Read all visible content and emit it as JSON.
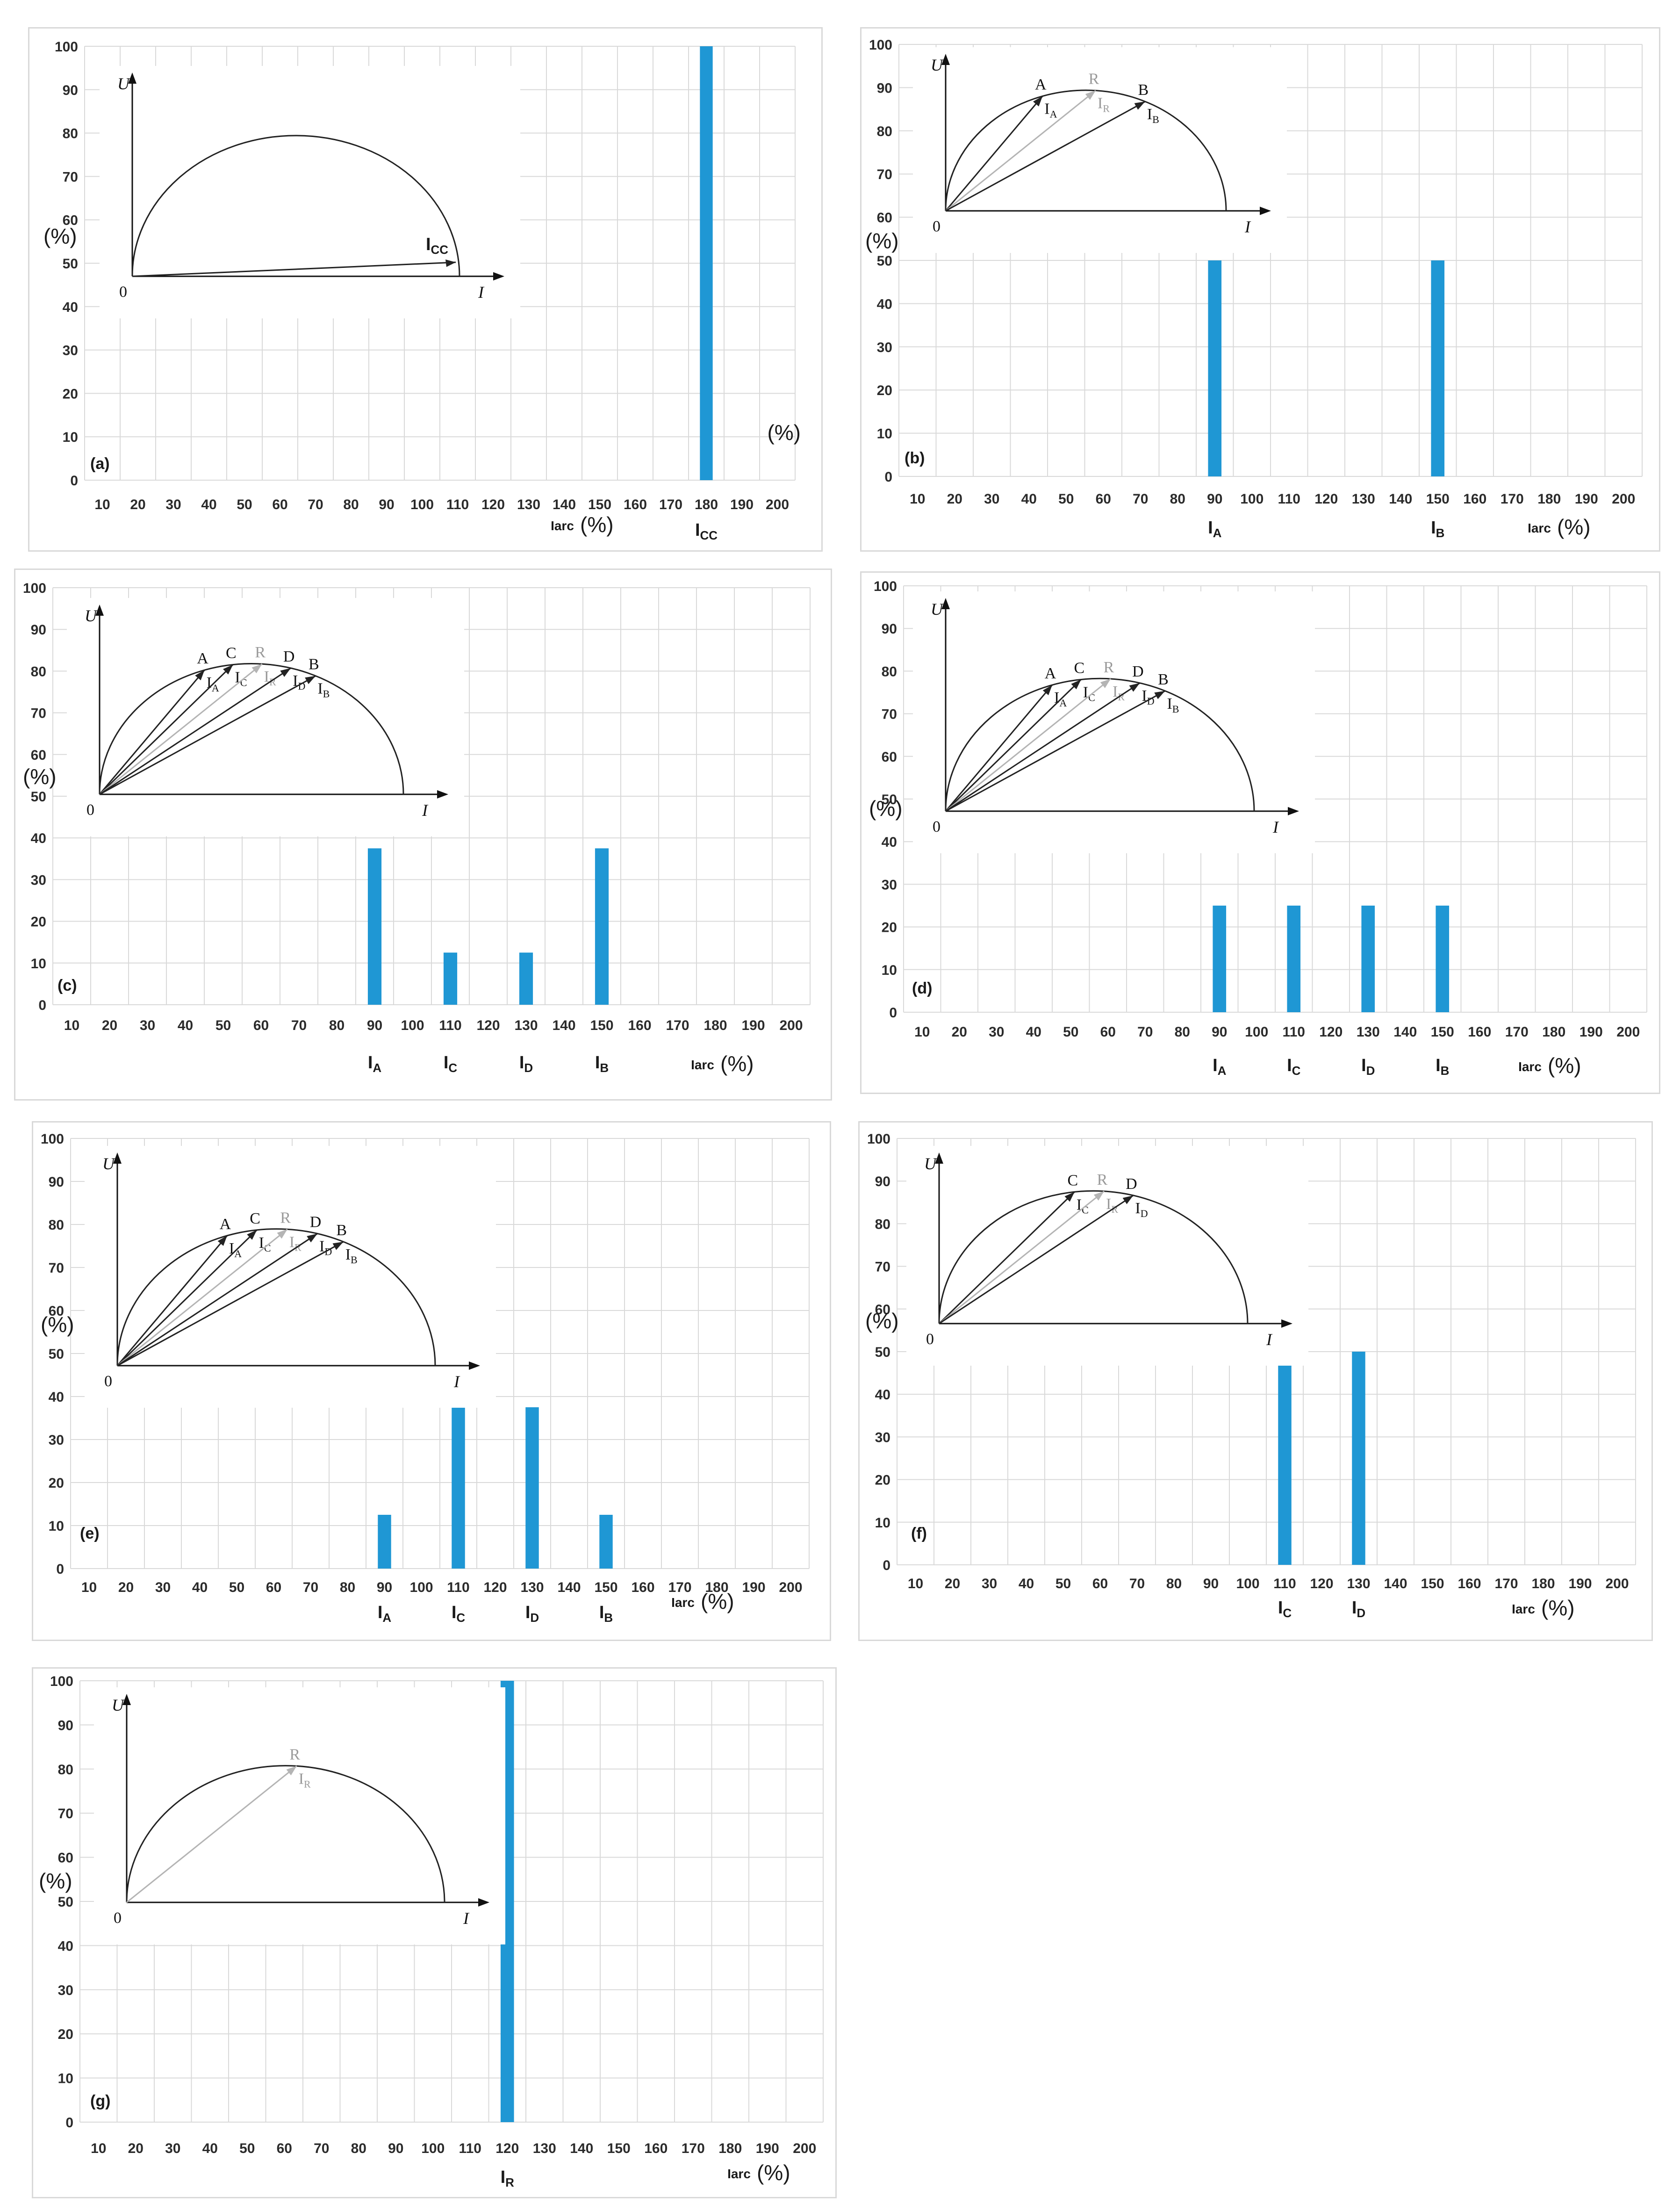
{
  "colors": {
    "bar": "#1f97d4",
    "grid": "#d9d9d9",
    "axis": "#111111",
    "grey_vector": "#b4b4b4"
  },
  "common": {
    "y_unit": "(%)",
    "x_label": "Iarc",
    "x_unit": "(%)",
    "inset_y_label": "U",
    "inset_x_label": "I",
    "inset_origin": "0"
  },
  "chart_data": [
    {
      "type": "bar",
      "panel_label": "(a)",
      "x": [
        10,
        20,
        30,
        40,
        50,
        60,
        70,
        80,
        90,
        100,
        110,
        120,
        130,
        140,
        150,
        160,
        170,
        180,
        190,
        200
      ],
      "y_ticks": [
        0,
        10,
        20,
        30,
        40,
        50,
        60,
        70,
        80,
        90,
        100
      ],
      "ylim": [
        0,
        100
      ],
      "series": [
        {
          "values": [
            {
              "x": 180,
              "y": 100
            }
          ]
        }
      ],
      "category_labels": [
        {
          "x": 180,
          "base": "I",
          "sub": "CC"
        }
      ],
      "inset": {
        "points": [],
        "vectors": [
          {
            "label": "I",
            "sub": "CC"
          }
        ]
      }
    },
    {
      "type": "bar",
      "panel_label": "(b)",
      "x": [
        10,
        20,
        30,
        40,
        50,
        60,
        70,
        80,
        90,
        100,
        110,
        120,
        130,
        140,
        150,
        160,
        170,
        180,
        190,
        200
      ],
      "y_ticks": [
        0,
        10,
        20,
        30,
        40,
        50,
        60,
        70,
        80,
        90,
        100
      ],
      "ylim": [
        0,
        100
      ],
      "series": [
        {
          "values": [
            {
              "x": 90,
              "y": 50
            },
            {
              "x": 150,
              "y": 50
            }
          ]
        }
      ],
      "category_labels": [
        {
          "x": 90,
          "base": "I",
          "sub": "A"
        },
        {
          "x": 150,
          "base": "I",
          "sub": "B"
        }
      ],
      "inset": {
        "points": [
          "A",
          "R",
          "B"
        ],
        "vectors": [
          {
            "label": "I",
            "sub": "A"
          },
          {
            "label": "I",
            "sub": "R"
          },
          {
            "label": "I",
            "sub": "B"
          }
        ]
      }
    },
    {
      "type": "bar",
      "panel_label": "(c)",
      "x": [
        10,
        20,
        30,
        40,
        50,
        60,
        70,
        80,
        90,
        100,
        110,
        120,
        130,
        140,
        150,
        160,
        170,
        180,
        190,
        200
      ],
      "y_ticks": [
        0,
        10,
        20,
        30,
        40,
        50,
        60,
        70,
        80,
        90,
        100
      ],
      "ylim": [
        0,
        100
      ],
      "series": [
        {
          "values": [
            {
              "x": 90,
              "y": 37.5
            },
            {
              "x": 110,
              "y": 12.5
            },
            {
              "x": 130,
              "y": 12.5
            },
            {
              "x": 150,
              "y": 37.5
            }
          ]
        }
      ],
      "category_labels": [
        {
          "x": 90,
          "base": "I",
          "sub": "A"
        },
        {
          "x": 110,
          "base": "I",
          "sub": "C"
        },
        {
          "x": 130,
          "base": "I",
          "sub": "D"
        },
        {
          "x": 150,
          "base": "I",
          "sub": "B"
        }
      ],
      "inset": {
        "points": [
          "A",
          "C",
          "R",
          "D",
          "B"
        ],
        "vectors": [
          {
            "label": "I",
            "sub": "A"
          },
          {
            "label": "I",
            "sub": "C"
          },
          {
            "label": "I",
            "sub": "R"
          },
          {
            "label": "I",
            "sub": "D"
          },
          {
            "label": "I",
            "sub": "B"
          }
        ]
      }
    },
    {
      "type": "bar",
      "panel_label": "(d)",
      "x": [
        10,
        20,
        30,
        40,
        50,
        60,
        70,
        80,
        90,
        100,
        110,
        120,
        130,
        140,
        150,
        160,
        170,
        180,
        190,
        200
      ],
      "y_ticks": [
        0,
        10,
        20,
        30,
        40,
        50,
        60,
        70,
        80,
        90,
        100
      ],
      "ylim": [
        0,
        100
      ],
      "series": [
        {
          "values": [
            {
              "x": 90,
              "y": 25
            },
            {
              "x": 110,
              "y": 25
            },
            {
              "x": 130,
              "y": 25
            },
            {
              "x": 150,
              "y": 25
            }
          ]
        }
      ],
      "category_labels": [
        {
          "x": 90,
          "base": "I",
          "sub": "A"
        },
        {
          "x": 110,
          "base": "I",
          "sub": "C"
        },
        {
          "x": 130,
          "base": "I",
          "sub": "D"
        },
        {
          "x": 150,
          "base": "I",
          "sub": "B"
        }
      ],
      "inset": {
        "points": [
          "A",
          "C",
          "R",
          "D",
          "B"
        ],
        "vectors": [
          {
            "label": "I",
            "sub": "A"
          },
          {
            "label": "I",
            "sub": "C"
          },
          {
            "label": "I",
            "sub": "R"
          },
          {
            "label": "I",
            "sub": "D"
          },
          {
            "label": "I",
            "sub": "B"
          }
        ]
      }
    },
    {
      "type": "bar",
      "panel_label": "(e)",
      "x": [
        10,
        20,
        30,
        40,
        50,
        60,
        70,
        80,
        90,
        100,
        110,
        120,
        130,
        140,
        150,
        160,
        170,
        180,
        190,
        200
      ],
      "y_ticks": [
        0,
        10,
        20,
        30,
        40,
        50,
        60,
        70,
        80,
        90,
        100
      ],
      "ylim": [
        0,
        100
      ],
      "series": [
        {
          "values": [
            {
              "x": 90,
              "y": 12.5
            },
            {
              "x": 110,
              "y": 37.5
            },
            {
              "x": 130,
              "y": 37.5
            },
            {
              "x": 150,
              "y": 12.5
            }
          ]
        }
      ],
      "category_labels": [
        {
          "x": 90,
          "base": "I",
          "sub": "A"
        },
        {
          "x": 110,
          "base": "I",
          "sub": "C"
        },
        {
          "x": 130,
          "base": "I",
          "sub": "D"
        },
        {
          "x": 150,
          "base": "I",
          "sub": "B"
        }
      ],
      "inset": {
        "points": [
          "A",
          "C",
          "R",
          "D",
          "B"
        ],
        "vectors": [
          {
            "label": "I",
            "sub": "A"
          },
          {
            "label": "I",
            "sub": "C"
          },
          {
            "label": "I",
            "sub": "R"
          },
          {
            "label": "I",
            "sub": "D"
          },
          {
            "label": "I",
            "sub": "B"
          }
        ]
      }
    },
    {
      "type": "bar",
      "panel_label": "(f)",
      "x": [
        10,
        20,
        30,
        40,
        50,
        60,
        70,
        80,
        90,
        100,
        110,
        120,
        130,
        140,
        150,
        160,
        170,
        180,
        190,
        200
      ],
      "y_ticks": [
        0,
        10,
        20,
        30,
        40,
        50,
        60,
        70,
        80,
        90,
        100
      ],
      "ylim": [
        0,
        100
      ],
      "series": [
        {
          "values": [
            {
              "x": 110,
              "y": 50
            },
            {
              "x": 130,
              "y": 50
            }
          ]
        }
      ],
      "category_labels": [
        {
          "x": 110,
          "base": "I",
          "sub": "C"
        },
        {
          "x": 130,
          "base": "I",
          "sub": "D"
        }
      ],
      "inset": {
        "points": [
          "C",
          "R",
          "D"
        ],
        "vectors": [
          {
            "label": "I",
            "sub": "C"
          },
          {
            "label": "I",
            "sub": "R"
          },
          {
            "label": "I",
            "sub": "D"
          }
        ]
      }
    },
    {
      "type": "bar",
      "panel_label": "(g)",
      "x": [
        10,
        20,
        30,
        40,
        50,
        60,
        70,
        80,
        90,
        100,
        110,
        120,
        130,
        140,
        150,
        160,
        170,
        180,
        190,
        200
      ],
      "y_ticks": [
        0,
        10,
        20,
        30,
        40,
        50,
        60,
        70,
        80,
        90,
        100
      ],
      "ylim": [
        0,
        100
      ],
      "series": [
        {
          "values": [
            {
              "x": 120,
              "y": 100
            }
          ]
        }
      ],
      "category_labels": [
        {
          "x": 120,
          "base": "I",
          "sub": "R"
        }
      ],
      "inset": {
        "points": [
          "R"
        ],
        "vectors": [
          {
            "label": "I",
            "sub": "R"
          }
        ]
      }
    }
  ]
}
